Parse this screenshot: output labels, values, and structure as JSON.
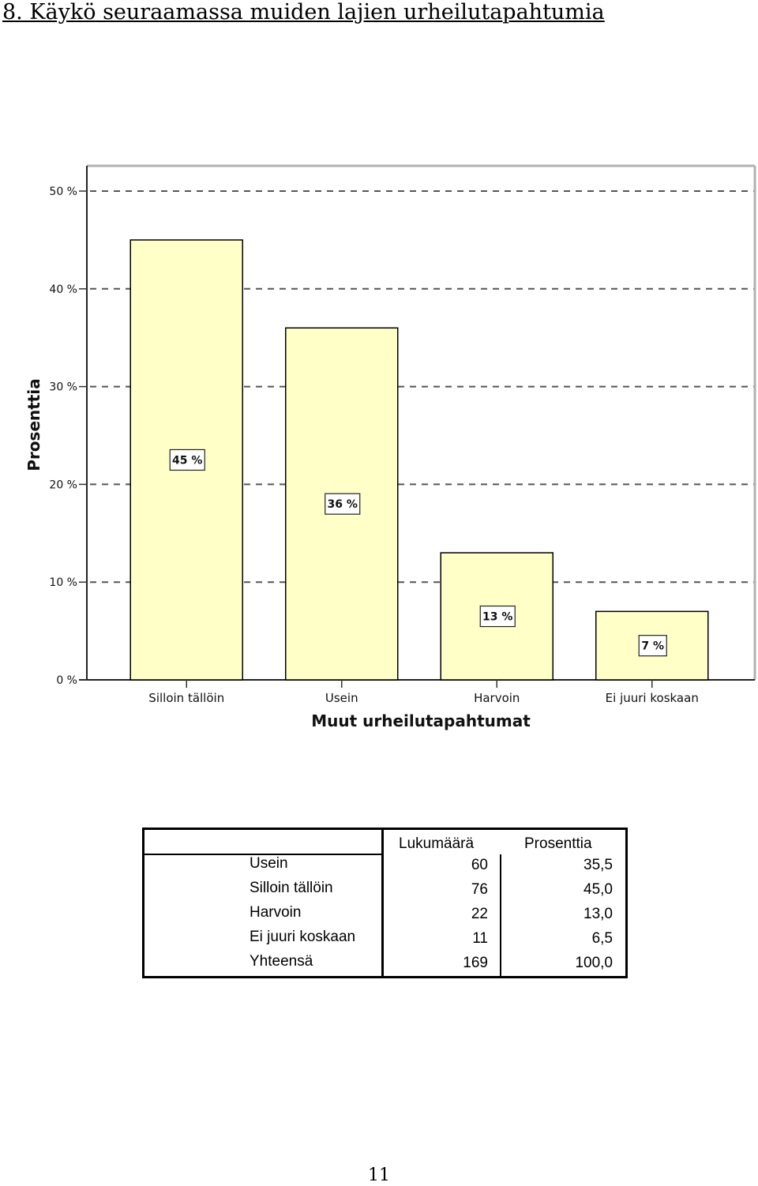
{
  "heading": "8. Käykö seuraamassa muiden lajien urheilutapahtumia",
  "chart_data": {
    "type": "bar",
    "categories": [
      "Silloin tällöin",
      "Usein",
      "Harvoin",
      "Ei juuri koskaan"
    ],
    "values": [
      45,
      36,
      13,
      7
    ],
    "data_labels": [
      "45 %",
      "36 %",
      "13 %",
      "7 %"
    ],
    "xlabel": "Muut urheilutapahtumat",
    "ylabel": "Prosenttia",
    "ylim": [
      0,
      50
    ],
    "yticks": [
      0,
      10,
      20,
      30,
      40,
      50
    ],
    "ytick_labels": [
      "0 %",
      "10 %",
      "20 %",
      "30 %",
      "40 %",
      "50 %"
    ],
    "grid": "dashed horizontal",
    "bar_color": "#ffffc8",
    "bar_outline": "#000000"
  },
  "table": {
    "headers": [
      "Lukumäärä",
      "Prosenttia"
    ],
    "rows": [
      {
        "label": "Usein",
        "count": "60",
        "percent": "35,5"
      },
      {
        "label": "Silloin tällöin",
        "count": "76",
        "percent": "45,0"
      },
      {
        "label": "Harvoin",
        "count": "22",
        "percent": "13,0"
      },
      {
        "label": "Ei juuri koskaan",
        "count": "11",
        "percent": "6,5"
      },
      {
        "label": "Yhteensä",
        "count": "169",
        "percent": "100,0"
      }
    ]
  },
  "page_number": "11"
}
